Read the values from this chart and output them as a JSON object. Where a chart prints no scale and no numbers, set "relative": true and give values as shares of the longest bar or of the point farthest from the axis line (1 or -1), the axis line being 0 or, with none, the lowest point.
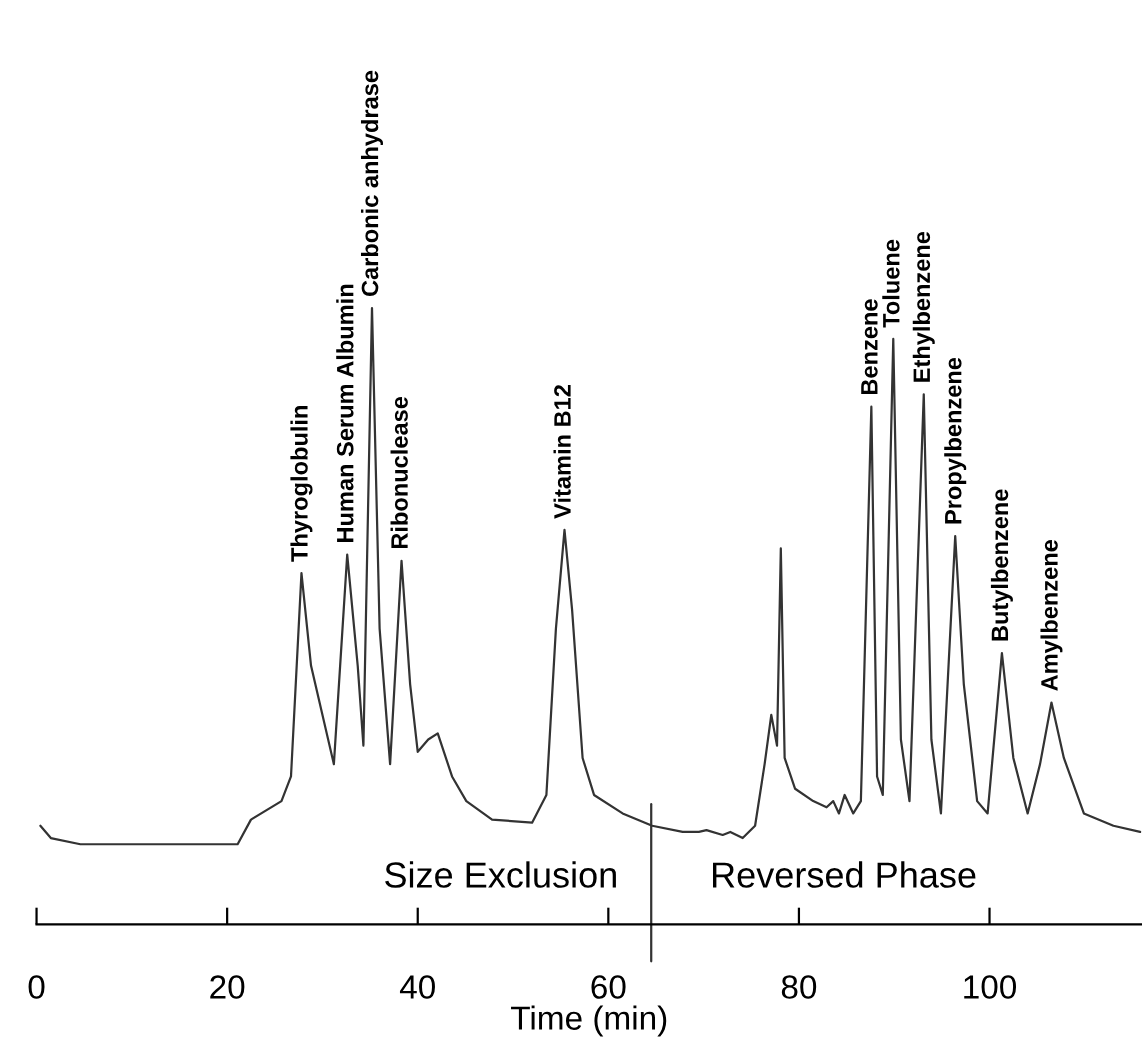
{
  "chart_data": {
    "type": "line",
    "xlabel": "Time (min)",
    "relative": true,
    "xlim": [
      0,
      116
    ],
    "xticks": [
      0,
      20,
      40,
      60,
      80,
      100
    ],
    "grid": false,
    "legend": false,
    "marker": "none",
    "line_style": "solid",
    "series": [
      {
        "color": "#333333",
        "x": [
          0.4,
          1.5,
          4.6,
          21.1,
          22.5,
          25.7,
          26.7,
          27.8,
          28.8,
          31.2,
          32.6,
          33.7,
          34.3,
          35.2,
          36.0,
          37.1,
          38.3,
          39.2,
          40.0,
          41.1,
          42.1,
          43.6,
          45.1,
          47.8,
          52.0,
          53.5,
          54.5,
          55.4,
          56.2,
          57.3,
          58.5,
          61.5,
          64.6,
          67.8,
          69.5,
          70.3,
          72.0,
          72.8,
          74.1,
          75.4,
          76.4,
          77.1,
          77.7,
          78.1,
          78.5,
          79.6,
          81.5,
          82.9,
          83.6,
          84.2,
          84.8,
          85.7,
          86.5,
          87.6,
          88.2,
          88.8,
          89.9,
          90.7,
          91.6,
          93.1,
          93.9,
          94.9,
          96.4,
          97.3,
          98.7,
          99.8,
          101.3,
          102.5,
          104.0,
          105.3,
          106.5,
          107.8,
          109.9,
          113.0,
          115.8
        ],
        "values": [
          0.16,
          0.14,
          0.13,
          0.13,
          0.17,
          0.2,
          0.24,
          0.57,
          0.42,
          0.26,
          0.6,
          0.42,
          0.29,
          1.0,
          0.48,
          0.26,
          0.59,
          0.39,
          0.28,
          0.3,
          0.31,
          0.24,
          0.2,
          0.17,
          0.165,
          0.21,
          0.48,
          0.64,
          0.51,
          0.27,
          0.21,
          0.18,
          0.16,
          0.15,
          0.15,
          0.153,
          0.145,
          0.15,
          0.14,
          0.16,
          0.26,
          0.34,
          0.29,
          0.61,
          0.27,
          0.22,
          0.2,
          0.19,
          0.2,
          0.18,
          0.21,
          0.18,
          0.2,
          0.84,
          0.24,
          0.21,
          0.95,
          0.3,
          0.2,
          0.86,
          0.3,
          0.18,
          0.63,
          0.39,
          0.2,
          0.18,
          0.44,
          0.27,
          0.18,
          0.26,
          0.36,
          0.27,
          0.18,
          0.16,
          0.15
        ]
      }
    ],
    "ref_lines": [
      {
        "axis": "x",
        "value": 64.5,
        "color": "#333333"
      }
    ],
    "annotations": [
      {
        "text": "Thyroglobulin",
        "x": 27.8,
        "y": 0.57
      },
      {
        "text": "Human Serum Albumin",
        "x": 32.6,
        "y": 0.6
      },
      {
        "text": "Carbonic anhydrase",
        "x": 35.2,
        "y": 1.0
      },
      {
        "text": "Ribonuclease",
        "x": 38.3,
        "y": 0.59
      },
      {
        "text": "Vitamin B12",
        "x": 55.4,
        "y": 0.64
      },
      {
        "text": "Benzene",
        "x": 87.6,
        "y": 0.84
      },
      {
        "text": "Toluene",
        "x": 89.9,
        "y": 0.95
      },
      {
        "text": "Ethylbenzene",
        "x": 93.1,
        "y": 0.86
      },
      {
        "text": "Propylbenzene",
        "x": 96.4,
        "y": 0.63
      },
      {
        "text": "Butylbenzene",
        "x": 101.3,
        "y": 0.44
      },
      {
        "text": "Amylbenzene",
        "x": 106.5,
        "y": 0.36
      },
      "Size Exclusion",
      "Reversed Phase"
    ]
  }
}
